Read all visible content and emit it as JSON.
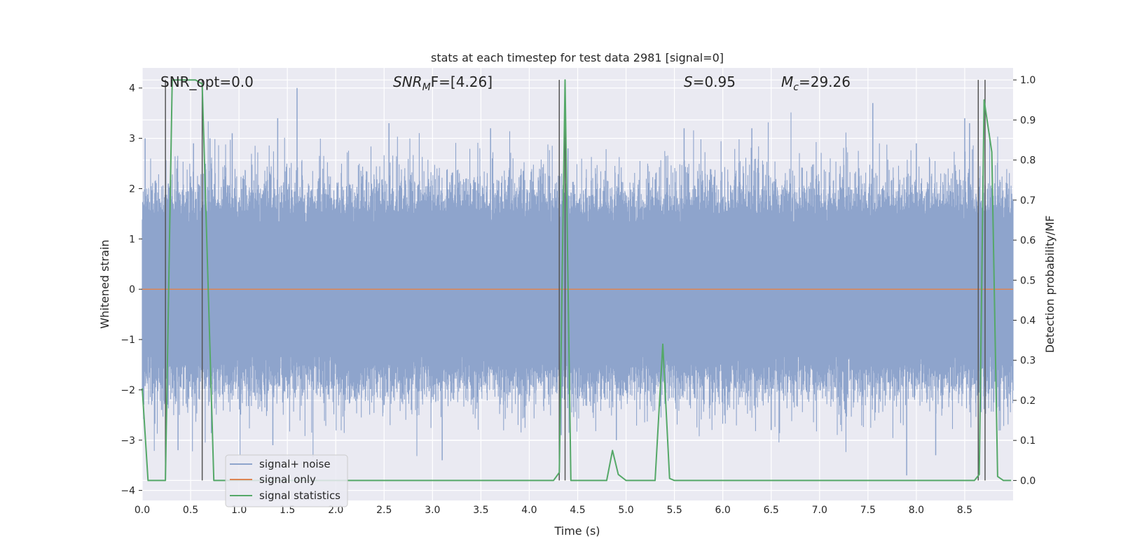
{
  "chart_data": {
    "type": "line",
    "title": "stats at each timestep for test data 2981 [signal=0]",
    "xlabel": "Time (s)",
    "ylabel": "Whitened strain",
    "ylabel_right": "Detection probability/MF",
    "xlim": [
      0.0,
      9.0
    ],
    "ylim": [
      -4.2,
      4.4
    ],
    "ylim_right": [
      -0.05,
      1.03
    ],
    "x_ticks": [
      "0.0",
      "0.5",
      "1.0",
      "1.5",
      "2.0",
      "2.5",
      "3.0",
      "3.5",
      "4.0",
      "4.5",
      "5.0",
      "5.5",
      "6.0",
      "6.5",
      "7.0",
      "7.5",
      "8.0",
      "8.5"
    ],
    "y_ticks": [
      "4",
      "3",
      "2",
      "1",
      "0",
      "−1",
      "−2",
      "−3",
      "−4"
    ],
    "y_right_ticks": [
      "1.0",
      "0.9",
      "0.8",
      "0.7",
      "0.6",
      "0.5",
      "0.4",
      "0.3",
      "0.2",
      "0.1",
      "0.0"
    ],
    "grid": true,
    "legend_position": "lower-left",
    "annotations": {
      "snr_opt": "SNR_opt=0.0",
      "snr_mf_var": "SNR",
      "snr_mf_sub": "M",
      "snr_mf_rest": "F=[4.26]",
      "s_var": "S",
      "s_rest": "=0.95",
      "mc_var": "M",
      "mc_sub": "c",
      "mc_rest": "=29.26"
    },
    "series": [
      {
        "name": "signal+ noise",
        "color": "#8ea4cc",
        "style": "dense noise band",
        "amplitude_typical": 1.5,
        "peaks": [
          [
            0.03,
            3.0
          ],
          [
            0.2,
            -2.4
          ],
          [
            0.27,
            2.1
          ],
          [
            0.37,
            -3.2
          ],
          [
            0.53,
            2.9
          ],
          [
            0.7,
            3.0
          ],
          [
            0.93,
            3.1
          ],
          [
            1.35,
            -3.1
          ],
          [
            1.4,
            3.4
          ],
          [
            1.6,
            4.0
          ],
          [
            2.5,
            -2.3
          ],
          [
            2.55,
            3.3
          ],
          [
            3.1,
            -3.4
          ],
          [
            3.6,
            3.2
          ],
          [
            4.33,
            -2.9
          ],
          [
            4.4,
            2.8
          ],
          [
            4.9,
            -3.0
          ],
          [
            5.6,
            3.2
          ],
          [
            6.3,
            3.2
          ],
          [
            6.5,
            -2.8
          ],
          [
            7.55,
            3.7
          ],
          [
            7.9,
            -3.7
          ],
          [
            8.0,
            2.9
          ],
          [
            8.2,
            -3.3
          ],
          [
            8.5,
            3.4
          ],
          [
            8.55,
            3.3
          ]
        ]
      },
      {
        "name": "signal only",
        "color": "#dd8452",
        "x": [
          0.0,
          9.0
        ],
        "y": [
          0.0,
          0.0
        ]
      },
      {
        "name": "signal statistics",
        "color": "#55a868",
        "axis": "right",
        "x": [
          0.0,
          0.06,
          0.24,
          0.31,
          0.55,
          0.62,
          0.74,
          0.8,
          4.25,
          4.31,
          4.37,
          4.43,
          4.48,
          4.8,
          4.86,
          4.92,
          5.0,
          5.3,
          5.38,
          5.45,
          5.5,
          8.6,
          8.65,
          8.7,
          8.78,
          8.84,
          8.9,
          8.98
        ],
        "y": [
          0.23,
          0.0,
          0.0,
          1.0,
          1.0,
          0.99,
          0.0,
          0.0,
          0.0,
          0.02,
          1.0,
          0.0,
          0.0,
          0.0,
          0.075,
          0.015,
          0.0,
          0.0,
          0.34,
          0.005,
          0.0,
          0.0,
          0.015,
          0.95,
          0.82,
          0.01,
          0.0,
          0.0
        ]
      }
    ],
    "vertical_markers": [
      0.24,
      0.62,
      4.31,
      4.37,
      8.64,
      8.71
    ]
  }
}
